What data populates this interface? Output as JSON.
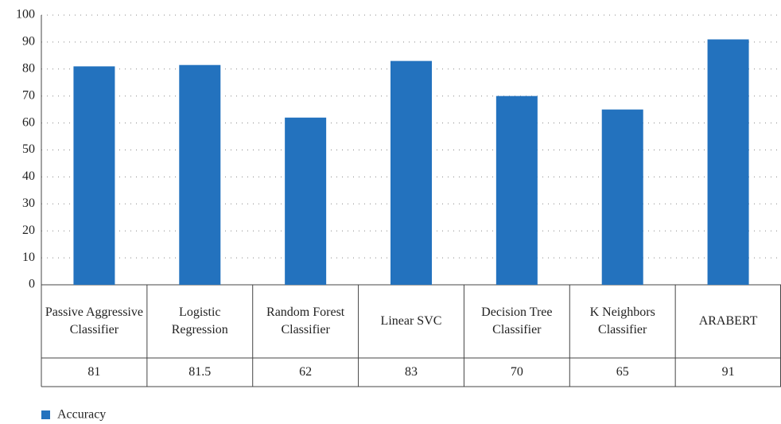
{
  "chart_data": {
    "type": "bar",
    "categories": [
      "Passive Aggressive Classifier",
      "Logistic Regression",
      "Random Forest Classifier",
      "Linear SVC",
      "Decision Tree Classifier",
      "K Neighbors Classifier",
      "ARABERT"
    ],
    "series": [
      {
        "name": "Accuracy",
        "color": "#2372be",
        "values": [
          81,
          81.5,
          62,
          83,
          70,
          65,
          91
        ]
      }
    ],
    "ylim": [
      0,
      100
    ],
    "yticks": [
      0,
      10,
      20,
      30,
      40,
      50,
      60,
      70,
      80,
      90,
      100
    ],
    "grid": true,
    "legend": "bottom-left"
  }
}
